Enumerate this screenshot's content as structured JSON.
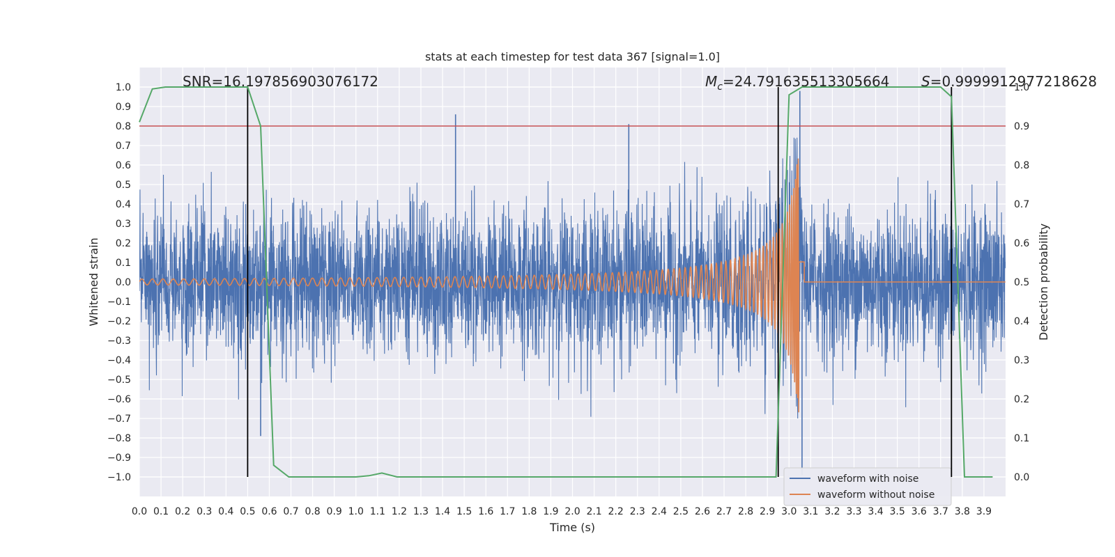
{
  "chart_data": {
    "type": "line",
    "title": "stats at each timestep for test data 367 [signal=1.0]",
    "xlabel": "Time (s)",
    "ylabel": "Whitened strain",
    "y2label": "Detection probability",
    "xlim": [
      0.0,
      4.0
    ],
    "ylim": [
      -1.1,
      1.1
    ],
    "y2lim": [
      -0.05,
      1.05
    ],
    "x_ticks": [
      "0.0",
      "0.1",
      "0.2",
      "0.3",
      "0.4",
      "0.5",
      "0.6",
      "0.7",
      "0.8",
      "0.9",
      "1.0",
      "1.1",
      "1.2",
      "1.3",
      "1.4",
      "1.5",
      "1.6",
      "1.7",
      "1.8",
      "1.9",
      "2.0",
      "2.1",
      "2.2",
      "2.3",
      "2.4",
      "2.5",
      "2.6",
      "2.7",
      "2.8",
      "2.9",
      "3.0",
      "3.1",
      "3.2",
      "3.3",
      "3.4",
      "3.5",
      "3.6",
      "3.7",
      "3.8",
      "3.9"
    ],
    "y_ticks": [
      "1.0",
      "0.9",
      "0.8",
      "0.7",
      "0.6",
      "0.5",
      "0.4",
      "0.3",
      "0.2",
      "0.1",
      "0.0",
      "−0.1",
      "−0.2",
      "−0.3",
      "−0.4",
      "−0.5",
      "−0.6",
      "−0.7",
      "−0.8",
      "−0.9",
      "−1.0"
    ],
    "y2_ticks": [
      "1.0",
      "0.9",
      "0.8",
      "0.7",
      "0.6",
      "0.5",
      "0.4",
      "0.3",
      "0.2",
      "0.1",
      "0.0"
    ],
    "grid": true,
    "legend_position": "bottom-right",
    "annotations": {
      "snr": "SNR=16.197856903076172",
      "mc_symbol": "M",
      "mc_sub": "c",
      "mc_value": "=24.791635513305664",
      "s_symbol": "S",
      "s_value": "=0.9999912977218628"
    },
    "threshold": 0.9,
    "vlines": [
      0.5,
      2.95,
      3.75
    ],
    "series": [
      {
        "name": "waveform with noise",
        "color": "#4c72b0",
        "note": "dense noise trace, approximately uniform amplitude about +/-0.5 with peaks near +/-0.8",
        "peaks": [
          [
            1.46,
            0.86
          ],
          [
            2.26,
            0.81
          ],
          [
            3.05,
            0.98
          ],
          [
            0.56,
            -0.79
          ],
          [
            3.06,
            -0.99
          ],
          [
            2.95,
            -0.8
          ]
        ]
      },
      {
        "name": "waveform without noise",
        "color": "#dd8452",
        "chirp_start": 0.0,
        "chirp_merger": 3.05,
        "start_amplitude": 0.015,
        "peak_amplitude": 0.78
      },
      {
        "name": "detection probability",
        "color": "#55a868",
        "axis": "right",
        "x": [
          0.0,
          0.06,
          0.12,
          0.5,
          0.56,
          0.62,
          0.69,
          1.0,
          1.06,
          1.12,
          1.19,
          2.94,
          3.0,
          3.06,
          3.12,
          3.7,
          3.75,
          3.81,
          3.94
        ],
        "y": [
          0.91,
          0.995,
          1.0,
          1.0,
          0.9,
          0.03,
          0.0,
          0.0,
          0.003,
          0.01,
          0.0,
          0.0,
          0.98,
          1.0,
          1.0,
          1.0,
          0.975,
          0.0,
          0.0
        ]
      }
    ],
    "colors": {
      "threshold": "#c44e52",
      "vline": "#000000",
      "background": "#eaeaf2"
    }
  }
}
